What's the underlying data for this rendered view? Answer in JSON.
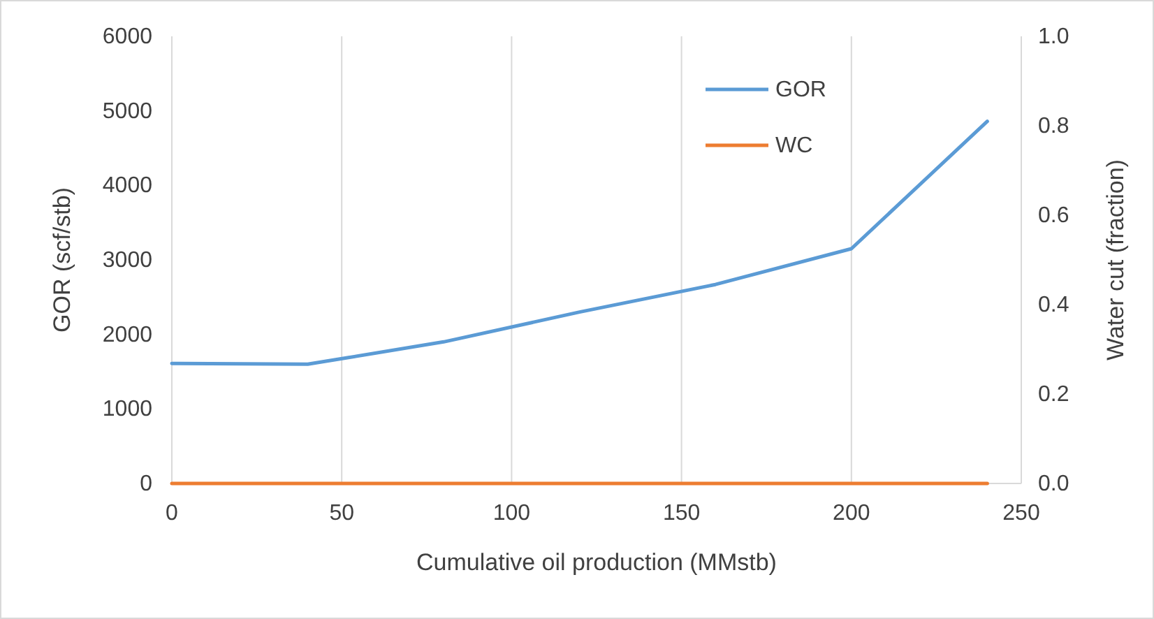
{
  "chart_data": {
    "type": "line",
    "xlabel": "Cumulative oil production (MMstb)",
    "ylabel": "GOR (scf/stb)",
    "y2label": "Water cut (fraction)",
    "x": [
      0,
      40,
      80,
      120,
      160,
      200,
      240
    ],
    "series": [
      {
        "name": "GOR",
        "color": "#5b9bd5",
        "values": [
          1610,
          1600,
          1900,
          2300,
          2670,
          3150,
          4860
        ]
      },
      {
        "name": "WC",
        "color": "#ed7d31",
        "values": [
          0,
          0,
          0,
          0,
          0,
          0,
          0
        ]
      }
    ],
    "xlim": [
      0,
      250
    ],
    "xticks": [
      0,
      50,
      100,
      150,
      200,
      250
    ],
    "ylim": [
      0,
      6000
    ],
    "yticks": [
      0,
      1000,
      2000,
      3000,
      4000,
      5000,
      6000
    ],
    "y2lim": [
      0,
      1
    ],
    "y2ticks": [
      {
        "value": 0,
        "label": "0.0"
      },
      {
        "value": 0.2,
        "label": "0.2"
      },
      {
        "value": 0.4,
        "label": "0.4"
      },
      {
        "value": 0.6,
        "label": "0.6"
      },
      {
        "value": 0.8,
        "label": "0.8"
      },
      {
        "value": 1,
        "label": "1.0"
      }
    ],
    "grid": "x",
    "legend": "top right",
    "marker": "none",
    "line_style": "solid"
  }
}
